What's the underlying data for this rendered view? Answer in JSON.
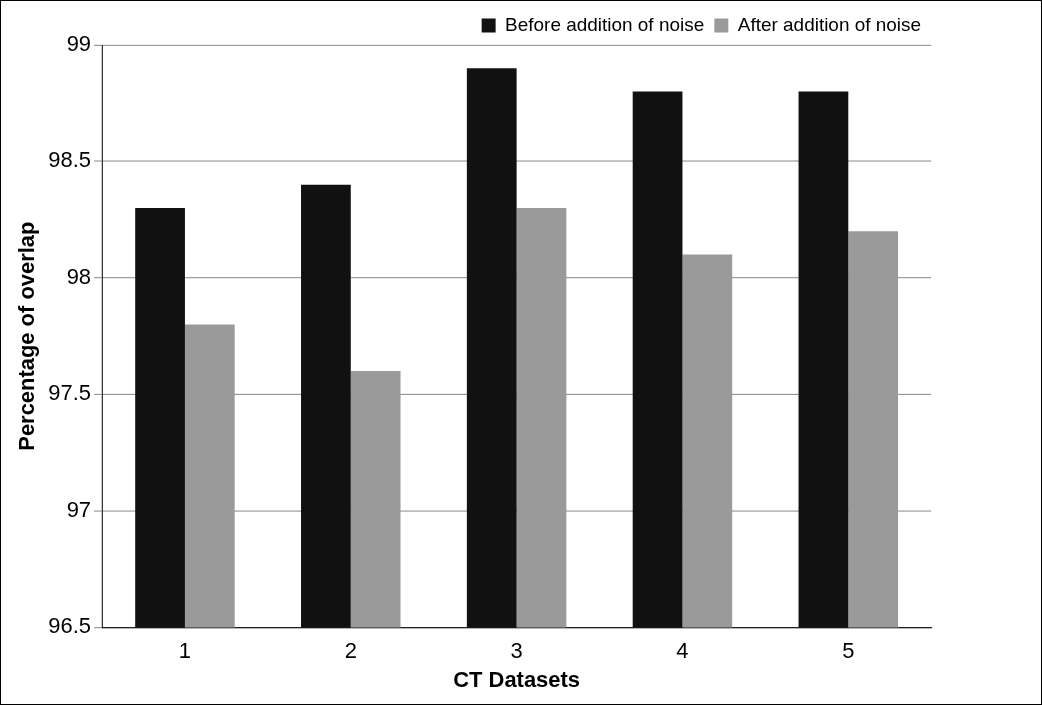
{
  "chart_data": {
    "type": "bar",
    "xlabel": "CT Datasets",
    "ylabel": "Percentage of overlap",
    "categories": [
      "1",
      "2",
      "3",
      "4",
      "5"
    ],
    "series": [
      {
        "name": "Before addition of noise",
        "color": "#111111",
        "values": [
          98.3,
          98.4,
          98.9,
          98.8,
          98.8
        ]
      },
      {
        "name": "After addition of noise",
        "color": "#9a9a9a",
        "values": [
          97.8,
          97.6,
          98.3,
          98.1,
          98.2
        ]
      }
    ],
    "ylim": [
      96.5,
      99
    ],
    "yticks": [
      96.5,
      97,
      97.5,
      98,
      98.5,
      99
    ],
    "grid": "y",
    "legend": "top right"
  }
}
